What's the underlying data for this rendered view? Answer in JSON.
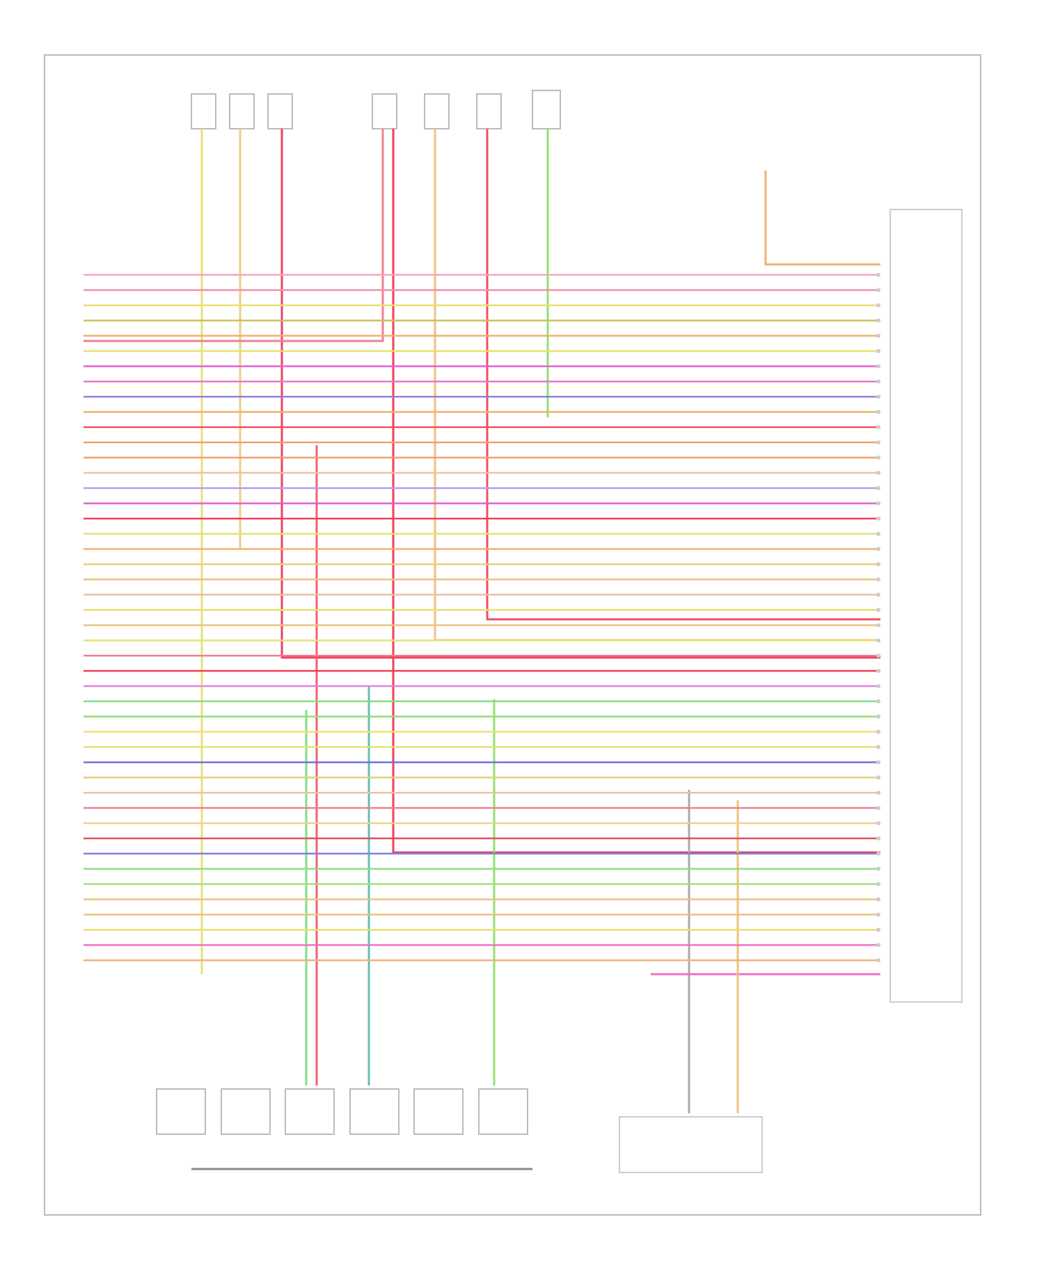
{
  "wiring": {
    "wires": [
      "#f4a6b8",
      "#f08fa8",
      "#e8e070",
      "#c8c060",
      "#f0b070",
      "#e8e070",
      "#e060d0",
      "#e878c8",
      "#9080e0",
      "#f0b070",
      "#f05060",
      "#f0a070",
      "#f0a070",
      "#f0c0a0",
      "#b0a0f0",
      "#e060d0",
      "#f04060",
      "#e8e070",
      "#f0b070",
      "#e8d080",
      "#f0c080",
      "#e8c0a0",
      "#e8e070",
      "#f0c080",
      "#e8e070",
      "#f08090",
      "#f04050",
      "#e080e0",
      "#80e080",
      "#90e070",
      "#f0e070",
      "#e8e070",
      "#7070e0",
      "#e0d080",
      "#f0c0a0",
      "#f08090",
      "#f0d090",
      "#e05060",
      "#8080e0",
      "#90e080",
      "#a0e080",
      "#f0c080",
      "#f0c080",
      "#e8e070",
      "#f070c0",
      "#f0b080"
    ]
  }
}
